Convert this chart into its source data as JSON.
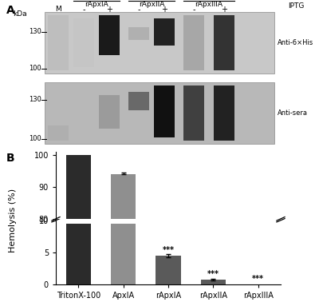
{
  "panel_b": {
    "categories": [
      "TritonX-100",
      "ApxIA",
      "rApxIA",
      "rApxIIA",
      "rApxIIIA"
    ],
    "values_high": [
      100,
      93.9,
      0,
      0,
      0
    ],
    "values_low": [
      9.5,
      9.5,
      4.5,
      0.8,
      0.0
    ],
    "errors_high": [
      0,
      0.4,
      0,
      0,
      0
    ],
    "errors_low": [
      0,
      0,
      0.3,
      0.1,
      0
    ],
    "bar_colors": [
      "#2b2b2b",
      "#8f8f8f",
      "#5a5a5a",
      "#5a5a5a",
      "#5a5a5a"
    ],
    "bar_width": 0.55,
    "ylabel": "Hemolysis (%)",
    "significance_labels": [
      "",
      "",
      "***",
      "***",
      "***"
    ],
    "panel_label": "B"
  },
  "panel_a": {
    "panel_label": "A",
    "kda_label": "kDa",
    "marker_label": "M",
    "group_labels": [
      "rApxIA",
      "rApxIIA",
      "rApxIIIA"
    ],
    "iptg_label": "IPTG",
    "minus_plus": [
      "-",
      "+",
      "-",
      "+",
      "-",
      "+"
    ],
    "band_labels_top": [
      "130",
      "100"
    ],
    "band_labels_bot": [
      "130",
      "100"
    ],
    "anti_his": "Anti-6×His",
    "anti_sera": "Anti-sera"
  }
}
